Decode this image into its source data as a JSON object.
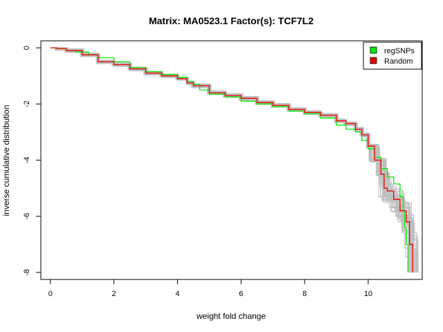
{
  "chart_data": {
    "type": "line",
    "title": "Matrix: MA0523.1 Factor(s): TCF7L2",
    "xlabel": "weight fold change",
    "ylabel": "inverse cumulative distribution",
    "xlim": [
      -0.3,
      11.7
    ],
    "ylim": [
      -8.25,
      0.25
    ],
    "x_ticks": [
      0,
      2,
      4,
      6,
      8,
      10
    ],
    "y_ticks": [
      0,
      -2,
      -4,
      -6,
      -8
    ],
    "legend": {
      "position": "top-right",
      "entries": [
        "regSNPs",
        "Random"
      ]
    },
    "colors": {
      "regSNPs": "#00ee00",
      "Random": "#ee0000",
      "background_random": "#bebebe"
    },
    "series": [
      {
        "name": "regSNPs",
        "color": "#00ee00",
        "x": [
          0.0,
          0.2,
          0.5,
          0.8,
          1.2,
          1.5,
          2.0,
          2.5,
          3.0,
          3.5,
          4.0,
          4.3,
          4.5,
          4.7,
          5.0,
          5.5,
          6.0,
          6.5,
          7.0,
          7.5,
          8.0,
          8.5,
          9.0,
          9.3,
          9.6,
          9.8,
          10.0,
          10.2,
          10.4,
          10.6,
          10.8,
          11.0,
          11.1,
          11.15,
          11.2,
          11.25
        ],
        "y": [
          0.0,
          -0.02,
          -0.1,
          -0.15,
          -0.25,
          -0.35,
          -0.5,
          -0.7,
          -0.85,
          -0.95,
          -1.05,
          -1.2,
          -1.3,
          -1.5,
          -1.65,
          -1.75,
          -1.9,
          -2.0,
          -2.1,
          -2.25,
          -2.35,
          -2.5,
          -2.75,
          -2.9,
          -3.0,
          -3.3,
          -3.6,
          -3.9,
          -4.3,
          -4.6,
          -4.85,
          -5.3,
          -5.8,
          -6.4,
          -7.0,
          -8.0
        ]
      },
      {
        "name": "Random",
        "color": "#ee0000",
        "x": [
          0.0,
          0.2,
          0.5,
          1.0,
          1.5,
          2.0,
          2.5,
          3.0,
          3.5,
          4.0,
          4.3,
          4.5,
          5.0,
          5.5,
          6.0,
          6.5,
          7.0,
          7.5,
          8.0,
          8.5,
          9.0,
          9.3,
          9.6,
          9.8,
          10.0,
          10.2,
          10.4,
          10.5,
          10.6,
          10.8,
          11.0,
          11.2,
          11.3,
          11.4
        ],
        "y": [
          0.0,
          -0.02,
          -0.1,
          -0.25,
          -0.5,
          -0.6,
          -0.75,
          -0.9,
          -1.0,
          -1.1,
          -1.25,
          -1.35,
          -1.6,
          -1.7,
          -1.8,
          -1.95,
          -2.05,
          -2.2,
          -2.3,
          -2.4,
          -2.6,
          -2.7,
          -2.9,
          -3.1,
          -3.5,
          -4.0,
          -4.5,
          -5.0,
          -5.1,
          -5.4,
          -5.8,
          -6.2,
          -7.0,
          -8.0
        ]
      }
    ]
  }
}
